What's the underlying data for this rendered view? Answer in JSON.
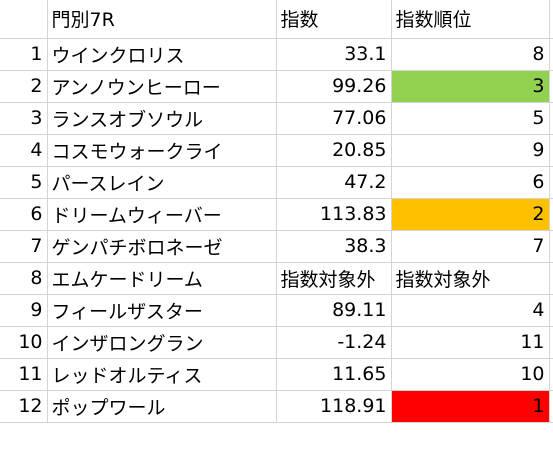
{
  "header": {
    "title": "門別7R",
    "col_index": "指数",
    "col_rank": "指数順位"
  },
  "rows": [
    {
      "no": "1",
      "name": "ウインクロリス",
      "index": "33.1",
      "rank": "8",
      "fill": ""
    },
    {
      "no": "2",
      "name": "アンノウンヒーロー",
      "index": "99.26",
      "rank": "3",
      "fill": "#92d050"
    },
    {
      "no": "3",
      "name": "ランスオブソウル",
      "index": "77.06",
      "rank": "5",
      "fill": ""
    },
    {
      "no": "4",
      "name": "コスモウォークライ",
      "index": "20.85",
      "rank": "9",
      "fill": ""
    },
    {
      "no": "5",
      "name": "パースレイン",
      "index": "47.2",
      "rank": "6",
      "fill": ""
    },
    {
      "no": "6",
      "name": "ドリームウィーバー",
      "index": "113.83",
      "rank": "2",
      "fill": "#ffc000"
    },
    {
      "no": "7",
      "name": "ゲンパチボロネーゼ",
      "index": "38.3",
      "rank": "7",
      "fill": ""
    },
    {
      "no": "8",
      "name": "エムケードリーム",
      "index": "指数対象外",
      "rank": "指数対象外",
      "fill": "",
      "excluded": true
    },
    {
      "no": "9",
      "name": "フィールザスター",
      "index": "89.11",
      "rank": "4",
      "fill": ""
    },
    {
      "no": "10",
      "name": "インザロングラン",
      "index": "-1.24",
      "rank": "11",
      "fill": ""
    },
    {
      "no": "11",
      "name": "レッドオルティス",
      "index": "11.65",
      "rank": "10",
      "fill": ""
    },
    {
      "no": "12",
      "name": "ポップワール",
      "index": "118.91",
      "rank": "1",
      "fill": "#ff0000"
    }
  ]
}
